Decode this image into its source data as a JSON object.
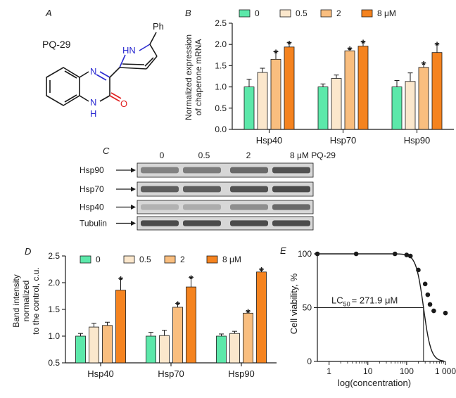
{
  "panels": {
    "A": "A",
    "B": "B",
    "C": "C",
    "D": "D",
    "E": "E"
  },
  "molecule": {
    "name": "PQ-29",
    "atoms": {
      "n_top": "N",
      "nh_pyrrole": "HN",
      "ph": "Ph",
      "nh_bottom": "N",
      "h_bottom": "H",
      "o": "O"
    }
  },
  "legend": [
    "0",
    "0.5",
    "2",
    "8 μM"
  ],
  "colors": {
    "c0": "#5ce8aa",
    "c05": "#fbe7cc",
    "c2": "#f9be7f",
    "c8": "#f5831f",
    "nitrogen": "#2b2bd1",
    "oxygen": "#e02020",
    "blot_bg": "#d7d7d7",
    "blot_band": "#3c3c3c"
  },
  "chart_data": [
    {
      "type": "bar",
      "panel": "B",
      "ylabel": "Normalized expression of chaperone mRNA",
      "ylabel_lines": [
        "Normalized expression",
        "of chaperone mRNA"
      ],
      "categories": [
        "Hsp40",
        "Hsp70",
        "Hsp90"
      ],
      "ylim": [
        0,
        2.5
      ],
      "yticks": [
        "0.0",
        "0.5",
        "1.0",
        "1.5",
        "2.0",
        "2.5"
      ],
      "series": [
        {
          "name": "0",
          "values": [
            1.0,
            1.0,
            1.0
          ],
          "errors": [
            0.18,
            0.07,
            0.15
          ]
        },
        {
          "name": "0.5",
          "values": [
            1.34,
            1.2,
            1.13
          ],
          "errors": [
            0.1,
            0.08,
            0.2
          ]
        },
        {
          "name": "2",
          "values": [
            1.65,
            1.85,
            1.46
          ],
          "errors": [
            0.18,
            0.05,
            0.1
          ]
        },
        {
          "name": "8 μM",
          "values": [
            1.94,
            1.96,
            1.81
          ],
          "errors": [
            0.1,
            0.1,
            0.2
          ]
        }
      ],
      "significance": [
        [
          false,
          false,
          true,
          true
        ],
        [
          false,
          false,
          true,
          true
        ],
        [
          false,
          false,
          true,
          true
        ]
      ],
      "star": "*"
    },
    {
      "type": "bar",
      "panel": "D",
      "ylabel": "Band intensity normalized to the control, c.u.",
      "ylabel_lines": [
        "Band intensity",
        "normalized",
        "to the control, c.u."
      ],
      "categories": [
        "Hsp40",
        "Hsp70",
        "Hsp90"
      ],
      "ylim": [
        0.5,
        2.5
      ],
      "yticks": [
        "0.5",
        "1.0",
        "1.5",
        "2.0",
        "2.5"
      ],
      "series": [
        {
          "name": "0",
          "values": [
            1.0,
            1.0,
            1.0
          ],
          "errors": [
            0.05,
            0.07,
            0.04
          ]
        },
        {
          "name": "0.5",
          "values": [
            1.17,
            1.01,
            1.05
          ],
          "errors": [
            0.07,
            0.1,
            0.04
          ]
        },
        {
          "name": "2",
          "values": [
            1.2,
            1.54,
            1.43
          ],
          "errors": [
            0.06,
            0.07,
            0.04
          ]
        },
        {
          "name": "8 μM",
          "values": [
            1.86,
            1.92,
            2.2
          ],
          "errors": [
            0.22,
            0.18,
            0.05
          ]
        }
      ],
      "significance": [
        [
          false,
          false,
          false,
          true
        ],
        [
          false,
          false,
          true,
          true
        ],
        [
          false,
          false,
          true,
          true
        ]
      ],
      "star": "*"
    },
    {
      "type": "scatter",
      "panel": "E",
      "xlabel": "log(concentration)",
      "ylabel": "Cell viability, %",
      "xscale": "log",
      "xlim": [
        0.5,
        1000
      ],
      "ylim": [
        0,
        100
      ],
      "xticks": [
        "1",
        "10",
        "100",
        "1 000"
      ],
      "yticks": [
        "0",
        "50",
        "100"
      ],
      "points": {
        "x": [
          0.5,
          5,
          50,
          100,
          125,
          200,
          300,
          350,
          400,
          500,
          1000
        ],
        "y": [
          100,
          100,
          100,
          99,
          98,
          85,
          72,
          62,
          53,
          47,
          45
        ]
      },
      "fit": {
        "top": 100,
        "ic50": 271.9,
        "hill": 4.5,
        "x_range": [
          0.5,
          900
        ]
      },
      "annotation": {
        "prefix": "LC",
        "sub": "50",
        "text": "= 271.9 μM",
        "x": 271.9,
        "y": 50
      }
    }
  ],
  "blot": {
    "concentrations": [
      "0",
      "0.5",
      "2",
      "8 μM PQ-29"
    ],
    "rows": [
      {
        "label": "Hsp90",
        "intensities": [
          0.55,
          0.6,
          0.75,
          0.95
        ]
      },
      {
        "label": "Hsp70",
        "intensities": [
          0.85,
          0.85,
          0.95,
          1.0
        ]
      },
      {
        "label": "Hsp40",
        "intensities": [
          0.15,
          0.2,
          0.45,
          0.75
        ]
      },
      {
        "label": "Tubulin",
        "intensities": [
          1.0,
          1.0,
          1.0,
          1.0
        ]
      }
    ]
  }
}
